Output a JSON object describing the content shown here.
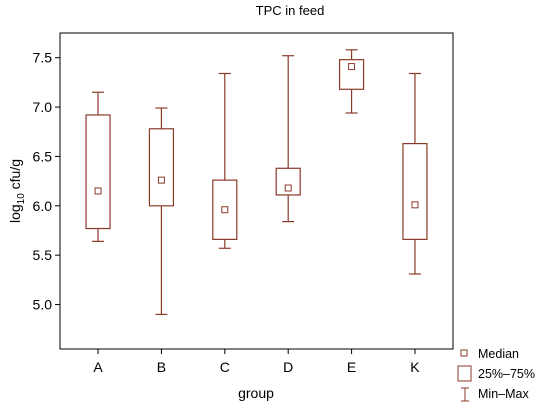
{
  "chart_data": {
    "type": "box",
    "title": "TPC in feed",
    "xlabel": "group",
    "ylabel_main": "log",
    "ylabel_sub": "10",
    "ylabel_rest": " cfu/g",
    "ylim": [
      4.55,
      7.75
    ],
    "yticks": [
      "5.0",
      "5.5",
      "6.0",
      "6.5",
      "7.0",
      "7.5"
    ],
    "grid": false,
    "legend_position": "bottom-right",
    "legend": {
      "median": "Median",
      "iqr": "25%–75%",
      "range": "Min–Max"
    },
    "categories": [
      "A",
      "B",
      "C",
      "D",
      "E",
      "K"
    ],
    "boxes": [
      {
        "category": "A",
        "min": 5.64,
        "q1": 5.77,
        "median": 6.15,
        "q3": 6.92,
        "max": 7.15
      },
      {
        "category": "B",
        "min": 4.9,
        "q1": 6.0,
        "median": 6.26,
        "q3": 6.78,
        "max": 6.99
      },
      {
        "category": "C",
        "min": 5.57,
        "q1": 5.66,
        "median": 5.96,
        "q3": 6.26,
        "max": 7.34
      },
      {
        "category": "D",
        "min": 5.84,
        "q1": 6.11,
        "median": 6.18,
        "q3": 6.38,
        "max": 7.52
      },
      {
        "category": "E",
        "min": 6.94,
        "q1": 7.18,
        "median": 7.41,
        "q3": 7.48,
        "max": 7.58
      },
      {
        "category": "K",
        "min": 5.31,
        "q1": 5.66,
        "median": 6.01,
        "q3": 6.63,
        "max": 7.34
      }
    ],
    "colors": {
      "box": "#8b3a2a",
      "axis": "#000000"
    }
  }
}
